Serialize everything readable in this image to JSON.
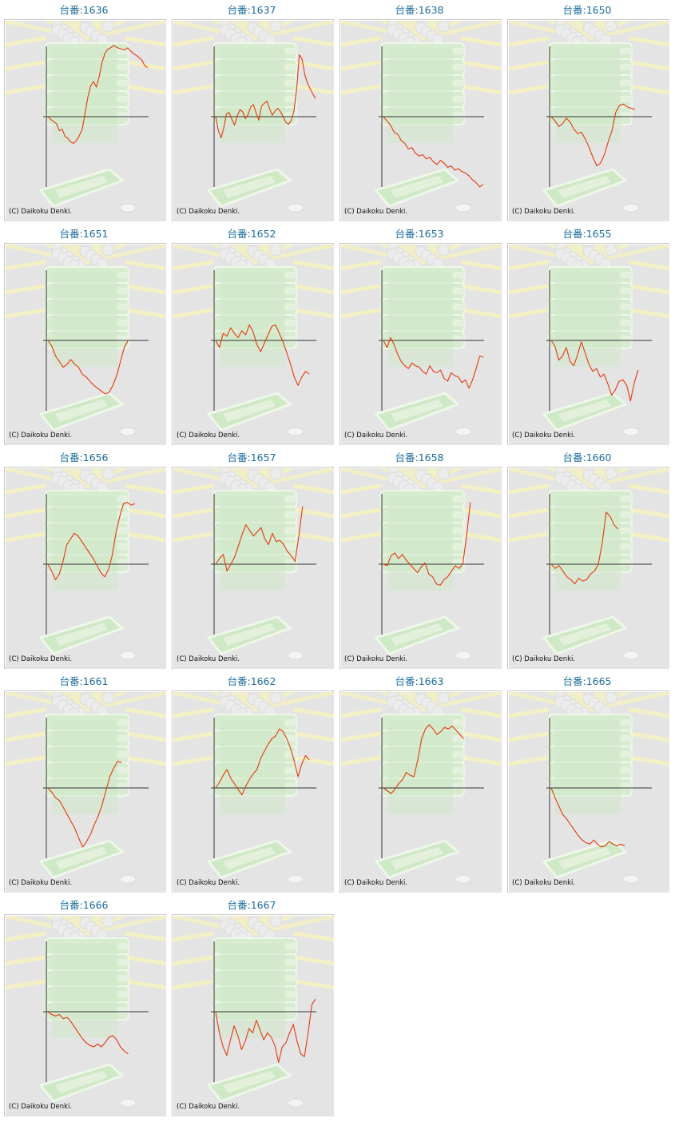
{
  "colors": {
    "title": "#1a6c9a",
    "line": "#e23a0e",
    "background": "#e4e4e4",
    "axis": "#333333"
  },
  "copyright": "(C) Daikoku Denki.",
  "chart_data": [
    {
      "type": "line",
      "title": "台番:1636",
      "y": [
        0,
        -4,
        -7,
        -10,
        -20,
        -18,
        -28,
        -31,
        -36,
        -38,
        -34,
        -27,
        -18,
        4,
        28,
        44,
        50,
        42,
        58,
        78,
        90,
        96,
        98,
        101,
        99,
        97,
        96,
        95,
        98,
        93,
        90,
        87,
        84,
        80,
        72,
        70
      ]
    },
    {
      "type": "line",
      "title": "台番:1637",
      "y": [
        0,
        -20,
        -30,
        -16,
        4,
        6,
        -4,
        -12,
        1,
        10,
        7,
        -3,
        3,
        14,
        17,
        5,
        -5,
        15,
        19,
        22,
        11,
        2,
        8,
        12,
        7,
        0,
        -8,
        -11,
        -5,
        8,
        40,
        88,
        82,
        60,
        48,
        40,
        32,
        26
      ]
    },
    {
      "type": "line",
      "title": "台番:1638",
      "y": [
        0,
        -6,
        -12,
        -22,
        -25,
        -34,
        -38,
        -46,
        -44,
        -52,
        -56,
        -54,
        -60,
        -58,
        -64,
        -68,
        -62,
        -66,
        -72,
        -70,
        -76,
        -74,
        -78,
        -80,
        -84,
        -90,
        -94,
        -100,
        -96
      ]
    },
    {
      "type": "line",
      "title": "台番:1650",
      "y": [
        0,
        -6,
        -14,
        -10,
        -2,
        -8,
        -18,
        -24,
        -22,
        -32,
        -44,
        -58,
        -70,
        -66,
        -54,
        -36,
        -20,
        6,
        16,
        18,
        14,
        12,
        10
      ]
    },
    {
      "type": "line",
      "title": "台番:1651",
      "y": [
        0,
        -8,
        -22,
        -30,
        -38,
        -34,
        -27,
        -34,
        -38,
        -48,
        -52,
        -58,
        -64,
        -68,
        -72,
        -76,
        -74,
        -64,
        -50,
        -30,
        -10,
        0
      ]
    },
    {
      "type": "line",
      "title": "台番:1652",
      "y": [
        0,
        -10,
        10,
        6,
        18,
        10,
        4,
        14,
        8,
        22,
        12,
        -6,
        -16,
        -4,
        8,
        20,
        22,
        10,
        -2,
        -18,
        -34,
        -52,
        -64,
        -52,
        -44,
        -48
      ]
    },
    {
      "type": "line",
      "title": "台番:1653",
      "y": [
        0,
        -10,
        4,
        -6,
        -20,
        -30,
        -36,
        -40,
        -32,
        -36,
        -38,
        -44,
        -48,
        -36,
        -44,
        -46,
        -42,
        -54,
        -58,
        -46,
        -50,
        -52,
        -60,
        -56,
        -68,
        -56,
        -40,
        -22,
        -24
      ]
    },
    {
      "type": "line",
      "title": "台番:1655",
      "y": [
        0,
        -8,
        -28,
        -22,
        -10,
        -30,
        -36,
        -20,
        -2,
        -18,
        -34,
        -44,
        -40,
        -52,
        -48,
        -62,
        -78,
        -70,
        -58,
        -56,
        -64,
        -86,
        -60,
        -42
      ]
    },
    {
      "type": "line",
      "title": "台番:1656",
      "y": [
        0,
        -10,
        -22,
        -14,
        4,
        28,
        36,
        44,
        40,
        32,
        24,
        16,
        8,
        -2,
        -12,
        -18,
        -8,
        12,
        44,
        68,
        86,
        88,
        84,
        86
      ]
    },
    {
      "type": "line",
      "title": "台番:1657",
      "y": [
        0,
        8,
        14,
        -10,
        0,
        10,
        26,
        42,
        56,
        48,
        40,
        46,
        52,
        36,
        28,
        44,
        32,
        34,
        28,
        18,
        12,
        4,
        40,
        82
      ]
    },
    {
      "type": "line",
      "title": "台番:1658",
      "y": [
        0,
        -2,
        12,
        16,
        8,
        14,
        6,
        0,
        -6,
        -12,
        -4,
        2,
        -14,
        -18,
        -28,
        -30,
        -22,
        -18,
        -10,
        -2,
        -6,
        0,
        40,
        88
      ]
    },
    {
      "type": "line",
      "title": "台番:1660",
      "y": [
        0,
        -6,
        -2,
        -10,
        -18,
        -22,
        -28,
        -20,
        -24,
        -22,
        -14,
        -10,
        0,
        30,
        74,
        68,
        56,
        50
      ]
    },
    {
      "type": "line",
      "title": "台番:1661",
      "y": [
        0,
        -6,
        -14,
        -18,
        -28,
        -38,
        -48,
        -58,
        -72,
        -84,
        -76,
        -66,
        -52,
        -40,
        -24,
        -4,
        16,
        28,
        38,
        36
      ]
    },
    {
      "type": "line",
      "title": "台番:1662",
      "y": [
        0,
        8,
        18,
        26,
        14,
        6,
        -2,
        -10,
        2,
        12,
        20,
        26,
        42,
        52,
        62,
        70,
        74,
        84,
        80,
        70,
        56,
        38,
        16,
        34,
        46,
        40
      ]
    },
    {
      "type": "line",
      "title": "台番:1663",
      "y": [
        0,
        -4,
        -8,
        -2,
        6,
        12,
        22,
        18,
        16,
        40,
        70,
        84,
        90,
        84,
        76,
        80,
        86,
        84,
        88,
        82,
        76,
        70
      ]
    },
    {
      "type": "line",
      "title": "台番:1665",
      "y": [
        0,
        -14,
        -26,
        -38,
        -44,
        -52,
        -60,
        -68,
        -74,
        -78,
        -80,
        -74,
        -80,
        -84,
        -82,
        -76,
        -80,
        -82,
        -80,
        -82
      ]
    },
    {
      "type": "line",
      "title": "台番:1666",
      "y": [
        0,
        -4,
        -6,
        -4,
        -10,
        -8,
        -14,
        -22,
        -30,
        -38,
        -44,
        -48,
        -50,
        -46,
        -50,
        -44,
        -36,
        -34,
        -40,
        -50,
        -56,
        -60
      ]
    },
    {
      "type": "line",
      "title": "台番:1667",
      "y": [
        0,
        -30,
        -50,
        -62,
        -40,
        -20,
        -34,
        -54,
        -42,
        -24,
        -30,
        -12,
        -26,
        -40,
        -30,
        -36,
        -48,
        -72,
        -50,
        -44,
        -30,
        -18,
        -42,
        -60,
        -64,
        -30,
        10,
        18
      ]
    }
  ]
}
